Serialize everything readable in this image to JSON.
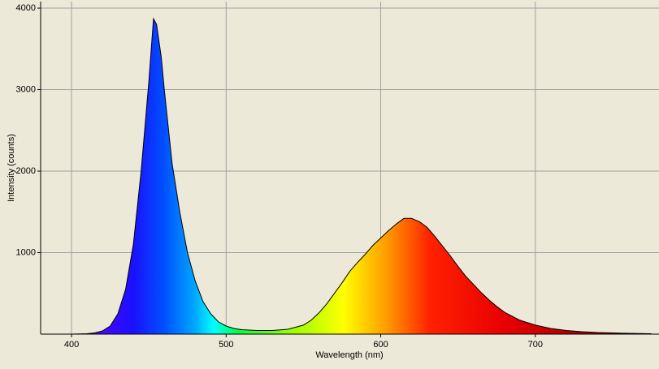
{
  "chart_data": {
    "type": "area",
    "x_label": "Wavelength (nm)",
    "y_label": "Intensity (counts)",
    "x": [
      380,
      400,
      410,
      415,
      420,
      425,
      430,
      435,
      440,
      445,
      450,
      453,
      455,
      458,
      460,
      465,
      470,
      475,
      480,
      485,
      490,
      495,
      500,
      505,
      510,
      520,
      530,
      540,
      550,
      555,
      560,
      565,
      570,
      575,
      580,
      585,
      590,
      595,
      600,
      605,
      610,
      615,
      620,
      625,
      630,
      635,
      640,
      645,
      650,
      655,
      660,
      665,
      670,
      675,
      680,
      690,
      700,
      710,
      720,
      730,
      740,
      750,
      760,
      775
    ],
    "values": [
      0,
      0,
      5,
      15,
      40,
      100,
      250,
      550,
      1100,
      2000,
      3100,
      3870,
      3800,
      3400,
      3000,
      2100,
      1500,
      1000,
      650,
      400,
      250,
      150,
      100,
      70,
      55,
      45,
      45,
      60,
      110,
      170,
      260,
      370,
      500,
      630,
      770,
      880,
      980,
      1090,
      1180,
      1270,
      1350,
      1420,
      1420,
      1380,
      1310,
      1200,
      1080,
      960,
      830,
      710,
      610,
      510,
      420,
      340,
      270,
      170,
      110,
      70,
      45,
      30,
      20,
      15,
      10,
      5
    ],
    "xlim": [
      380,
      780
    ],
    "ylim": [
      0,
      4080
    ],
    "xticks": [
      400,
      500,
      600,
      700
    ],
    "yticks": [
      1000,
      2000,
      3000,
      4000
    ],
    "grid": true,
    "line_color": "#000000"
  }
}
